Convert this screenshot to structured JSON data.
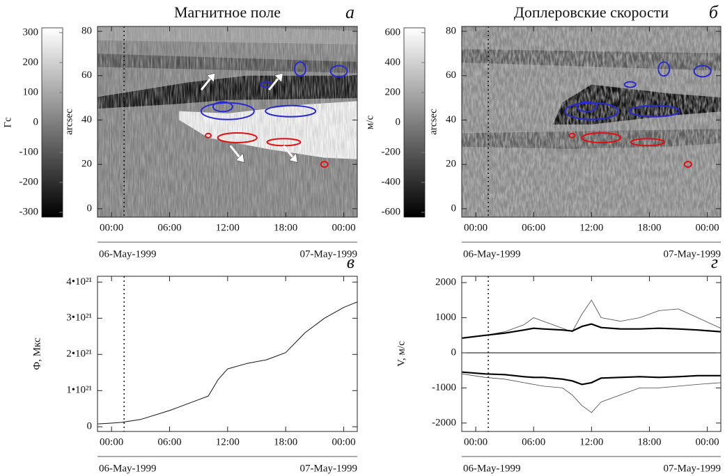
{
  "chart_data": [
    {
      "type": "image",
      "title": "Магнитное поле",
      "panel_label": "а",
      "ylabel": "arcsec",
      "xlim": [
        -1.45,
        25.4
      ],
      "xticks": [
        {
          "value": 0,
          "label": "00:00"
        },
        {
          "value": 6,
          "label": "06:00"
        },
        {
          "value": 12,
          "label": "12:00"
        },
        {
          "value": 18,
          "label": "18:00"
        },
        {
          "value": 24,
          "label": "00:00"
        }
      ],
      "ylim": [
        -3.8,
        82.2
      ],
      "yticks": [
        0,
        20,
        40,
        60,
        80
      ],
      "vline": 1.3,
      "date_labels": [
        "06-May-1999",
        "07-May-1999"
      ],
      "colorbar": {
        "label": "Гс",
        "lim": [
          -316,
          316
        ],
        "ticks": [
          -300,
          -200,
          -100,
          0,
          100,
          200,
          300
        ]
      }
    },
    {
      "type": "image",
      "title": "Доплеровские скорости",
      "panel_label": "б",
      "ylabel": "arcsec",
      "xlim": [
        -1.45,
        25.4
      ],
      "xticks": [
        {
          "value": 0,
          "label": "00:00"
        },
        {
          "value": 6,
          "label": "06:00"
        },
        {
          "value": 12,
          "label": "12:00"
        },
        {
          "value": 18,
          "label": "18:00"
        },
        {
          "value": 24,
          "label": "00:00"
        }
      ],
      "ylim": [
        -3.8,
        82.2
      ],
      "yticks": [
        0,
        20,
        40,
        60,
        80
      ],
      "vline": 1.3,
      "date_labels": [
        "06-May-1999",
        "07-May-1999"
      ],
      "colorbar": {
        "label": "м/с",
        "lim": [
          -632,
          632
        ],
        "ticks": [
          -600,
          -400,
          -200,
          0,
          200,
          400,
          600
        ]
      }
    },
    {
      "type": "line",
      "panel_label": "в",
      "ylabel": "Ф, Мкс",
      "xlim": [
        -1.45,
        25.4
      ],
      "xticks": [
        {
          "value": 0,
          "label": "00:00"
        },
        {
          "value": 6,
          "label": "06:00"
        },
        {
          "value": 12,
          "label": "12:00"
        },
        {
          "value": 18,
          "label": "18:00"
        },
        {
          "value": 24,
          "label": "00:00"
        }
      ],
      "ylim": [
        -1.3e+20,
        4.16e+21
      ],
      "yticks": [
        0,
        {
          "value": 1e+21,
          "label": "1•10²¹"
        },
        {
          "value": 2e+21,
          "label": "2•10²¹"
        },
        {
          "value": 3e+21,
          "label": "3•10²¹"
        },
        {
          "value": 4e+21,
          "label": "4•10²¹"
        }
      ],
      "vline": 1.3,
      "date_labels": [
        "06-May-1999",
        "07-May-1999"
      ],
      "x": [
        -1.4,
        0,
        1,
        3,
        6,
        9,
        10,
        11,
        12,
        14,
        16,
        18,
        20,
        22,
        24,
        25.4
      ],
      "series": [
        {
          "color": "#111111",
          "width": 1,
          "values": [
            8e+19,
            1e+20,
            1.2e+20,
            2e+20,
            4.5e+20,
            7.5e+20,
            8.5e+20,
            1.3e+21,
            1.6e+21,
            1.75e+21,
            1.85e+21,
            2.05e+21,
            2.6e+21,
            3e+21,
            3.3e+21,
            3.45e+21
          ]
        }
      ]
    },
    {
      "type": "line",
      "panel_label": "г",
      "ylabel": "V, м/с",
      "xlim": [
        -1.45,
        25.4
      ],
      "xticks": [
        {
          "value": 0,
          "label": "00:00"
        },
        {
          "value": 6,
          "label": "06:00"
        },
        {
          "value": 12,
          "label": "12:00"
        },
        {
          "value": 18,
          "label": "18:00"
        },
        {
          "value": 24,
          "label": "00:00"
        }
      ],
      "ylim": [
        -2240,
        2180
      ],
      "yticks": [
        -2000,
        -1000,
        0,
        1000,
        2000
      ],
      "zero_line": true,
      "vline": 1.3,
      "date_labels": [
        "06-May-1999",
        "07-May-1999"
      ],
      "x": [
        -1.4,
        1,
        3,
        5,
        6,
        7,
        9,
        10,
        11,
        12,
        13,
        15,
        17,
        19,
        21,
        23,
        25.4
      ],
      "series": [
        {
          "color": "#444444",
          "width": 0.8,
          "values": [
            420,
            500,
            600,
            800,
            1000,
            900,
            700,
            600,
            1100,
            1500,
            1000,
            900,
            1000,
            1200,
            1250,
            1000,
            700
          ]
        },
        {
          "color": "#000000",
          "width": 2.2,
          "values": [
            420,
            500,
            560,
            650,
            700,
            680,
            650,
            620,
            750,
            820,
            720,
            680,
            680,
            700,
            680,
            650,
            600
          ]
        },
        {
          "color": "#000000",
          "width": 2.2,
          "values": [
            -550,
            -600,
            -620,
            -680,
            -700,
            -700,
            -750,
            -800,
            -900,
            -850,
            -720,
            -700,
            -680,
            -700,
            -680,
            -650,
            -650
          ]
        },
        {
          "color": "#444444",
          "width": 0.8,
          "values": [
            -600,
            -700,
            -750,
            -850,
            -900,
            -950,
            -1000,
            -1200,
            -1500,
            -1700,
            -1400,
            -1200,
            -1000,
            -1000,
            -950,
            -900,
            -850
          ]
        }
      ]
    }
  ]
}
